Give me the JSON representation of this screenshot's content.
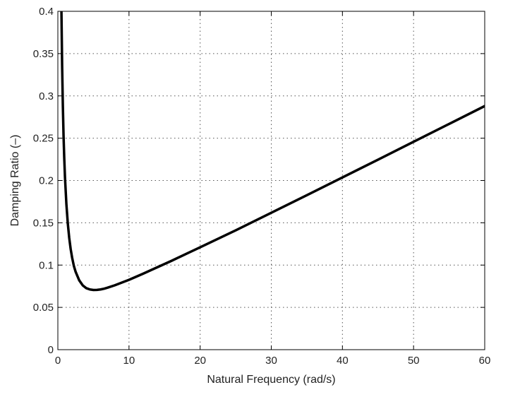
{
  "chart_data": {
    "type": "line",
    "title": "",
    "xlabel": "Natural Frequency (rad/s)",
    "ylabel": "Damping Ratio (–)",
    "xlim": [
      0,
      60
    ],
    "ylim": [
      0,
      0.4
    ],
    "x_ticks": [
      0,
      10,
      20,
      30,
      40,
      50,
      60
    ],
    "x_tick_labels": [
      "0",
      "10",
      "20",
      "30",
      "40",
      "50",
      "60"
    ],
    "y_ticks": [
      0,
      0.05,
      0.1,
      0.15,
      0.2,
      0.25,
      0.3,
      0.35,
      0.4
    ],
    "y_tick_labels": [
      "0",
      "0.05",
      "0.1",
      "0.15",
      "0.2",
      "0.25",
      "0.3",
      "0.35",
      "0.4"
    ],
    "grid": true,
    "grid_style": "dotted",
    "line_color": "#000000",
    "series": [
      {
        "x": [
          0.5,
          0.6,
          0.7,
          0.8,
          0.9,
          1.0,
          1.2,
          1.4,
          1.6,
          1.8,
          2,
          2.25,
          2.5,
          3,
          3.5,
          4,
          4.5,
          5,
          5.5,
          6,
          6.5,
          7,
          8,
          9,
          10,
          12,
          14,
          16,
          18,
          20,
          25,
          30,
          35,
          40,
          45,
          50,
          55,
          60
        ],
        "y": [
          0.403,
          0.336,
          0.289,
          0.253,
          0.226,
          0.204,
          0.172,
          0.149,
          0.132,
          0.119,
          0.109,
          0.099,
          0.092,
          0.082,
          0.076,
          0.0727,
          0.0712,
          0.0706,
          0.0707,
          0.0712,
          0.0721,
          0.0733,
          0.0761,
          0.0793,
          0.0826,
          0.0899,
          0.0975,
          0.1051,
          0.1131,
          0.121,
          0.1411,
          0.1618,
          0.1826,
          0.2036,
          0.2246,
          0.2458,
          0.2669,
          0.288
        ]
      }
    ]
  }
}
